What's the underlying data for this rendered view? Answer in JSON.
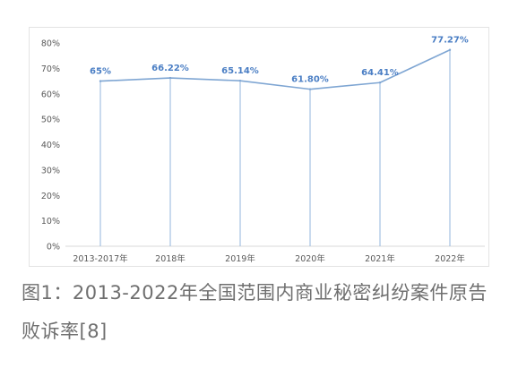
{
  "chart_data": {
    "type": "line",
    "title": "",
    "xlabel": "",
    "ylabel": "",
    "categories": [
      "2013-2017年",
      "2018年",
      "2019年",
      "2020年",
      "2021年",
      "2022年"
    ],
    "series": [
      {
        "values": [
          65,
          66.22,
          65.14,
          61.8,
          64.41,
          77.27
        ],
        "data_labels": [
          "65%",
          "66.22%",
          "65.14%",
          "61.80%",
          "64.41%",
          "77.27%"
        ]
      }
    ],
    "ylim": [
      0,
      80
    ],
    "yticks": [
      0,
      10,
      20,
      30,
      40,
      50,
      60,
      70,
      80
    ],
    "ytick_labels": [
      "0%",
      "10%",
      "20%",
      "30%",
      "40%",
      "50%",
      "60%",
      "70%",
      "80%"
    ],
    "drop_lines": true,
    "grid": false,
    "colors": {
      "line": "#7fa6d3",
      "drop_line": "#9dbbe0",
      "data_label": "#4a7ec4",
      "axis": "#d9d9d9",
      "tick_label": "#595959"
    }
  },
  "caption": "图1：2013-2022年全国范围内商业秘密纠纷案件原告败诉率[8]"
}
